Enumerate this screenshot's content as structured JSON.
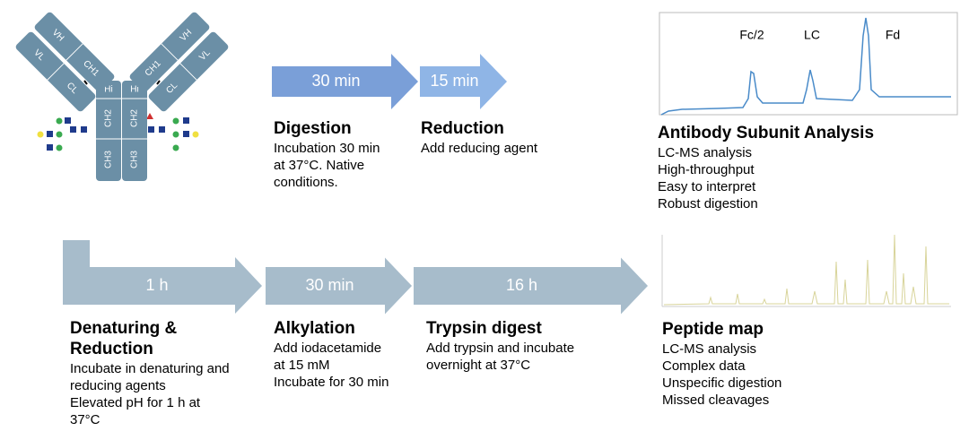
{
  "antibody": {
    "domains": [
      "VH",
      "VL",
      "CH1",
      "CL",
      "Hi",
      "CH2",
      "CH3",
      "VH",
      "VL",
      "CH1",
      "CL",
      "Hi",
      "CH2",
      "CH3"
    ]
  },
  "top_workflow": {
    "arrows": [
      "30 min",
      "15 min"
    ],
    "steps": [
      {
        "title": "Digestion",
        "lines": [
          "Incubation 30 min",
          "at 37°C. Native",
          "conditions."
        ]
      },
      {
        "title": "Reduction",
        "lines": [
          "Add reducing agent"
        ]
      }
    ]
  },
  "subunit_analysis": {
    "peaks": [
      "Fc/2",
      "LC",
      "Fd"
    ],
    "title": "Antibody Subunit Analysis",
    "lines": [
      "LC-MS analysis",
      "High-throughput",
      "Easy to interpret",
      "Robust digestion"
    ]
  },
  "bottom_workflow": {
    "arrows": [
      "1 h",
      "30 min",
      "16 h"
    ],
    "steps": [
      {
        "title": "Denaturing & Reduction",
        "lines": [
          "Incubate in denaturing and",
          "reducing agents",
          "Elevated pH for 1 h at",
          "37°C"
        ]
      },
      {
        "title": "Alkylation",
        "lines": [
          "Add iodacetamide",
          "at 15 mM",
          "Incubate for 30 min"
        ]
      },
      {
        "title": "Trypsin digest",
        "lines": [
          "Add trypsin and incubate",
          "overnight at 37°C"
        ]
      }
    ]
  },
  "peptide_map": {
    "title": "Peptide map",
    "lines": [
      "LC-MS analysis",
      "Complex data",
      "Unspecific digestion",
      "Missed cleavages"
    ]
  }
}
